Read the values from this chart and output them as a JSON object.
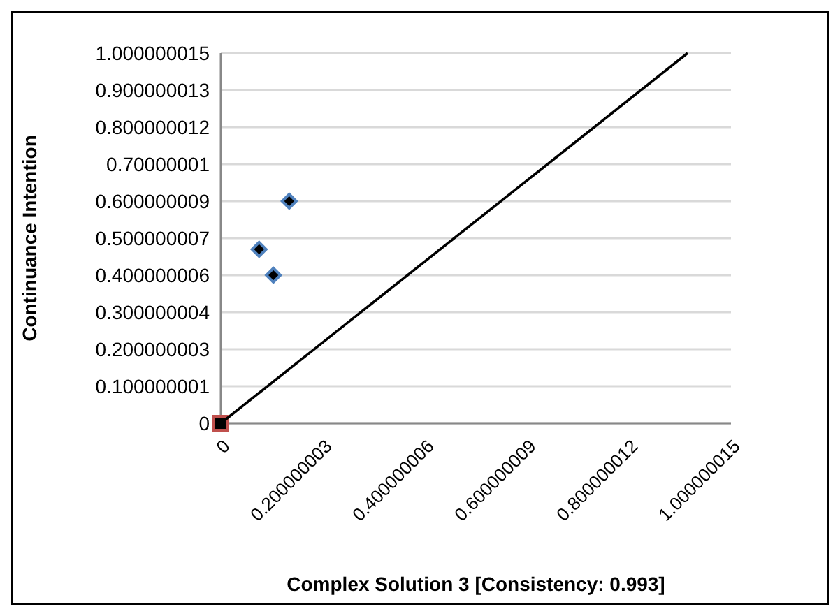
{
  "chart_data": {
    "type": "scatter",
    "xlabel": "Complex Solution 3 [Consistency: 0.993]",
    "ylabel": "Continuance Intention",
    "xlim": [
      0,
      1.000000015
    ],
    "ylim": [
      0,
      1.000000015
    ],
    "xticks": [
      0,
      0.200000003,
      0.400000006,
      0.600000009,
      0.800000012,
      1.000000015
    ],
    "yticks": [
      0,
      0.100000001,
      0.200000003,
      0.300000004,
      0.400000006,
      0.500000007,
      0.600000009,
      0.70000001,
      0.800000012,
      0.900000013,
      1.000000015
    ],
    "grid": "y",
    "series": [
      {
        "marker": "diamond",
        "color": "#4f81bd",
        "x": [
          0.134,
          0.075,
          0.103
        ],
        "values": [
          0.6,
          0.47,
          0.4
        ]
      },
      {
        "marker": "square",
        "color": "#c0504d",
        "x": [
          0
        ],
        "values": [
          0
        ]
      },
      {
        "type": "line",
        "marker": "none",
        "color": "#000000",
        "x": [
          0,
          0.915
        ],
        "values": [
          0,
          1.0
        ]
      }
    ]
  }
}
